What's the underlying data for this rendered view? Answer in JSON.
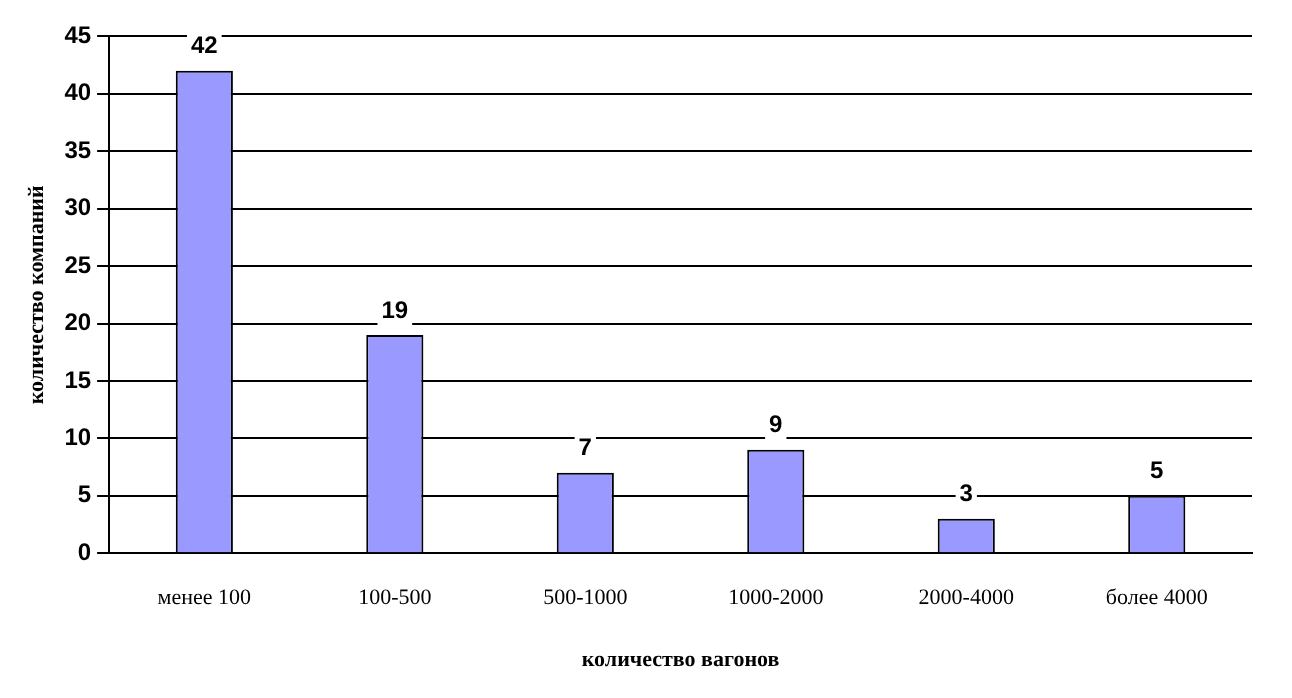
{
  "chart_data": {
    "type": "bar",
    "xlabel": "количество вагонов",
    "ylabel": "количество компаний",
    "categories": [
      "менее 100",
      "100-500",
      "500-1000",
      "1000-2000",
      "2000-4000",
      "более 4000"
    ],
    "values": [
      42,
      19,
      7,
      9,
      3,
      5
    ],
    "color": "#9999ff",
    "ylim": [
      0,
      45
    ],
    "yticks": [
      0,
      5,
      10,
      15,
      20,
      25,
      30,
      35,
      40,
      45
    ],
    "grid": "y",
    "data_labels": true,
    "legend": false
  }
}
